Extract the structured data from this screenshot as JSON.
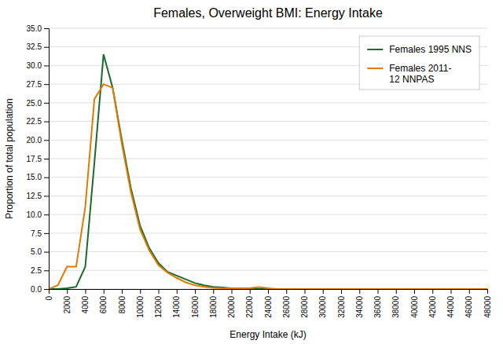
{
  "chart_data": {
    "type": "line",
    "title": "Females, Overweight BMI: Energy Intake",
    "xlabel": "Energy Intake (kJ)",
    "ylabel": "Proportion of total population",
    "x": [
      0,
      1000,
      2000,
      3000,
      4000,
      5000,
      6000,
      7000,
      8000,
      9000,
      10000,
      11000,
      12000,
      13000,
      14000,
      15000,
      16000,
      17000,
      18000,
      19000,
      20000,
      21000,
      22000,
      23000,
      24000,
      25000,
      26000,
      27000,
      28000,
      29000,
      30000,
      48000
    ],
    "series": [
      {
        "name": "Females 1995 NNS",
        "color": "#1a6b2a",
        "values": [
          0.0,
          0.0,
          0.1,
          0.3,
          3.0,
          17.0,
          31.5,
          27.0,
          20.0,
          13.5,
          8.5,
          5.5,
          3.5,
          2.3,
          1.8,
          1.3,
          0.8,
          0.5,
          0.3,
          0.2,
          0.1,
          0.05,
          0.0,
          0.0,
          0.0,
          0.0,
          0.0,
          0.0,
          0.0,
          0.0,
          0.0,
          0.0
        ]
      },
      {
        "name": "Females 2011-\n12 NNPAS",
        "color": "#e07b00",
        "values": [
          0.0,
          0.5,
          3.0,
          3.0,
          11.0,
          25.5,
          27.5,
          27.0,
          19.5,
          13.0,
          8.0,
          5.2,
          3.2,
          2.2,
          1.5,
          0.9,
          0.5,
          0.3,
          0.15,
          0.1,
          0.1,
          0.1,
          0.1,
          0.25,
          0.1,
          0.0,
          0.0,
          0.0,
          0.0,
          0.0,
          0.0,
          0.0
        ]
      }
    ],
    "xlim": [
      0,
      48000
    ],
    "ylim": [
      0,
      35.0
    ],
    "xticks": [
      0,
      2000,
      4000,
      6000,
      8000,
      10000,
      12000,
      14000,
      16000,
      18000,
      20000,
      22000,
      24000,
      26000,
      28000,
      30000,
      32000,
      34000,
      36000,
      38000,
      40000,
      42000,
      44000,
      46000,
      48000
    ],
    "yticks": [
      {
        "value": 0,
        "label": "0.0"
      },
      2.5,
      {
        "value": 5,
        "label": "5.0"
      },
      7.5,
      {
        "value": 10,
        "label": "10.0"
      },
      12.5,
      {
        "value": 15,
        "label": "15.0"
      },
      17.5,
      {
        "value": 20,
        "label": "20.0"
      },
      22.5,
      {
        "value": 25,
        "label": "25.0"
      },
      27.5,
      {
        "value": 30,
        "label": "30.0"
      },
      32.5,
      {
        "value": 35,
        "label": "35.0"
      }
    ],
    "grid": true,
    "legend": "upper right"
  }
}
